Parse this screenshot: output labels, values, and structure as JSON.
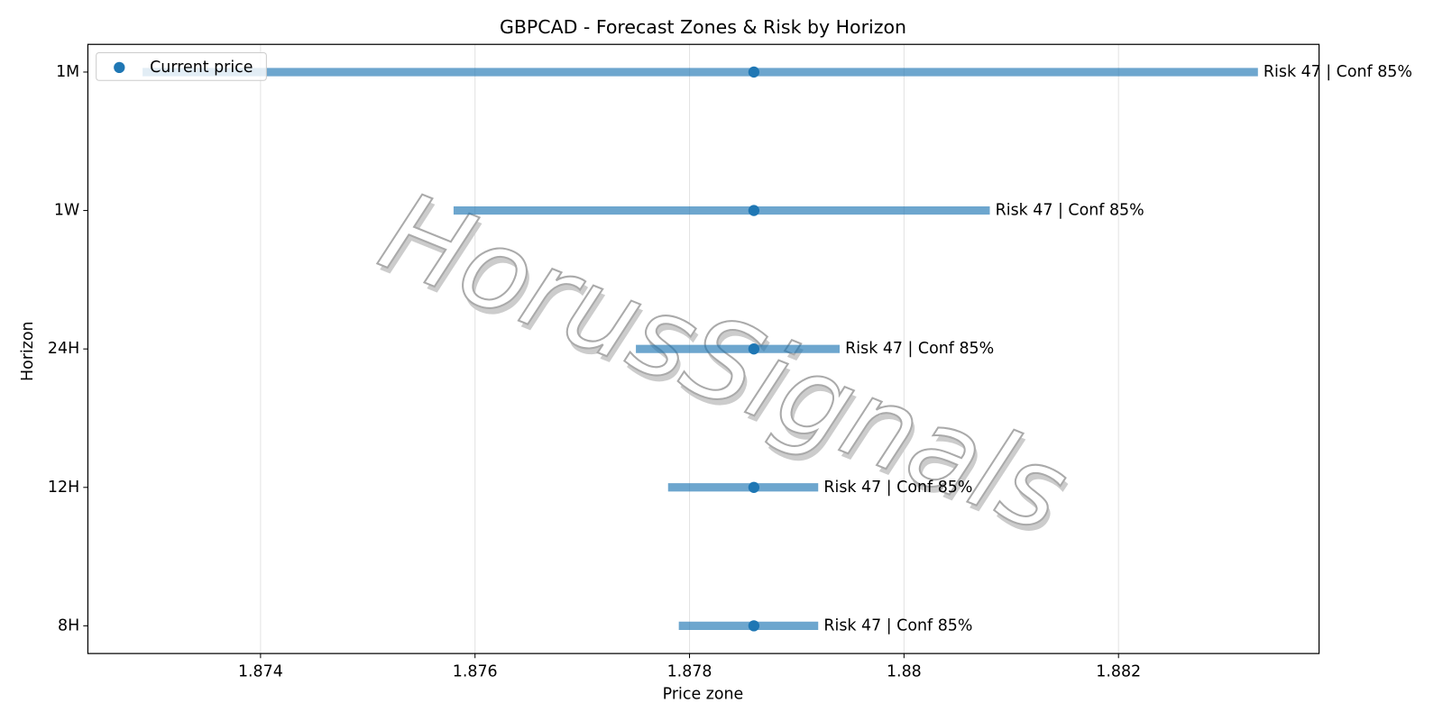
{
  "chart_data": {
    "type": "range",
    "title": "GBPCAD - Forecast Zones & Risk by Horizon",
    "xlabel": "Price zone",
    "ylabel": "Horizon",
    "watermark": "HorusSignals",
    "categories": [
      "8H",
      "12H",
      "24H",
      "1W",
      "1M"
    ],
    "low": [
      1.8779,
      1.8778,
      1.8775,
      1.8758,
      1.8729
    ],
    "high": [
      1.8792,
      1.8792,
      1.8794,
      1.8808,
      1.8833
    ],
    "bar_color": "#1f77b4",
    "labels": [
      "Risk 47 | Conf 85%",
      "Risk 47 | Conf 85%",
      "Risk 47 | Conf 85%",
      "Risk 47 | Conf 85%",
      "Risk 47 | Conf 85%"
    ],
    "current": {
      "name": "Current price",
      "color": "#1f77b4",
      "values": [
        1.8786,
        1.8786,
        1.8786,
        1.8786,
        1.8786
      ]
    },
    "xlim": [
      1.87239,
      1.88387
    ],
    "xticks": [
      1.874,
      1.876,
      1.878,
      1.88,
      1.882
    ],
    "grid": true,
    "legend": "upper left"
  }
}
